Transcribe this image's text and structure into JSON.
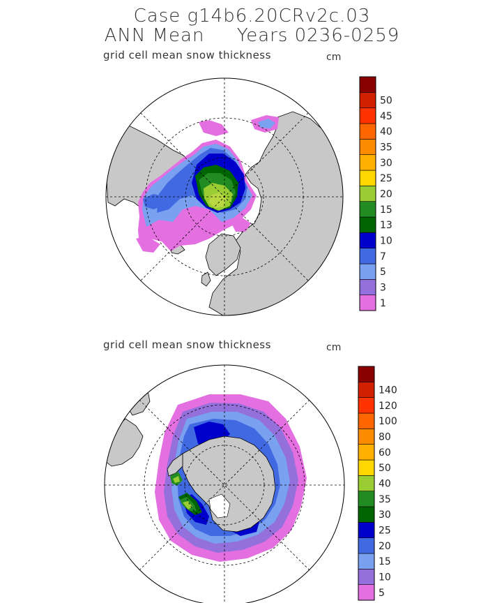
{
  "title": {
    "line1": "Case g14b6.20CRv2c.03",
    "line2": "ANN Mean     Years 0236-0259"
  },
  "panels": [
    {
      "id": "north",
      "hemisphere": "northern",
      "subtitle": "grid cell mean snow thickness",
      "unit": "cm",
      "colorbar": {
        "colors": [
          "#e36fe0",
          "#9370db",
          "#7aa0f0",
          "#4169e1",
          "#0000cd",
          "#006400",
          "#228b22",
          "#9acd32",
          "#ffd700",
          "#ffb000",
          "#ff8c00",
          "#ff6600",
          "#ff3300",
          "#d02000",
          "#8b0000"
        ],
        "labels": [
          "1",
          "3",
          "5",
          "7",
          "10",
          "13",
          "15",
          "20",
          "25",
          "30",
          "35",
          "40",
          "45",
          "50"
        ]
      }
    },
    {
      "id": "south",
      "hemisphere": "southern",
      "subtitle": "grid cell mean snow thickness",
      "unit": "cm",
      "colorbar": {
        "colors": [
          "#e36fe0",
          "#9370db",
          "#7aa0f0",
          "#4169e1",
          "#0000cd",
          "#006400",
          "#228b22",
          "#9acd32",
          "#ffd700",
          "#ffb000",
          "#ff8c00",
          "#ff6600",
          "#ff3300",
          "#d02000",
          "#8b0000"
        ],
        "labels": [
          "5",
          "10",
          "15",
          "20",
          "25",
          "30",
          "35",
          "40",
          "50",
          "60",
          "80",
          "100",
          "120",
          "140"
        ]
      }
    }
  ],
  "colors": {
    "land": "#c8c8c8",
    "ocean": "#ffffff",
    "outline": "#000000"
  }
}
